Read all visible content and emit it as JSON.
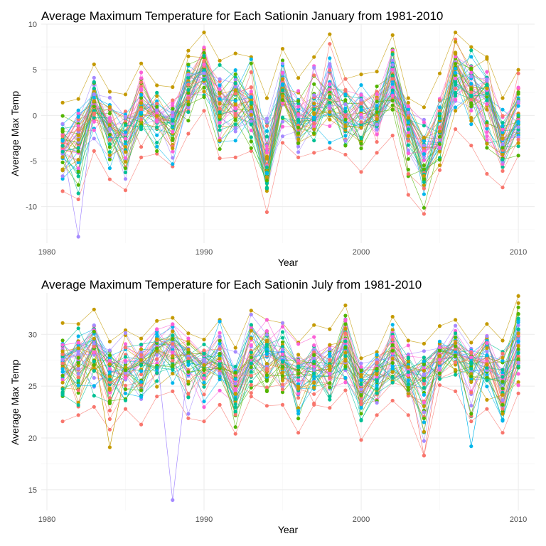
{
  "palette": [
    "#F8766D",
    "#C49A00",
    "#53B400",
    "#00C094",
    "#00B6EB",
    "#A58AFF",
    "#FB61D7"
  ],
  "chart_data": [
    {
      "type": "line",
      "title": "Average Maximum Temperature for Each Sationin January from 1981-2010",
      "xlabel": "Year",
      "ylabel": "Average Max Temp",
      "xlim": [
        1980,
        2010
      ],
      "ylim": [
        -14,
        10
      ],
      "xticks": [
        1980,
        1990,
        2000,
        2010
      ],
      "xtick_labels": [
        "1980",
        "1990",
        "2000",
        "2010"
      ],
      "yticks": [
        -10,
        -5,
        0,
        5,
        10
      ],
      "ytick_labels": [
        "-10",
        "-5",
        "0",
        "5",
        "10"
      ],
      "grid": true,
      "legend": "none",
      "years": [
        1981,
        1982,
        1983,
        1984,
        1985,
        1986,
        1987,
        1988,
        1989,
        1990,
        1991,
        1992,
        1993,
        1994,
        1995,
        1996,
        1997,
        1998,
        1999,
        2000,
        2001,
        2002,
        2003,
        2004,
        2005,
        2006,
        2007,
        2008,
        2009,
        2010
      ],
      "yearly_mean": [
        -3.3,
        -3.6,
        1.5,
        -2.0,
        -3.0,
        0.4,
        -0.3,
        -0.8,
        3.0,
        5.2,
        0.6,
        0.8,
        0.6,
        -5.6,
        2.5,
        -1.3,
        -0.2,
        1.7,
        -0.5,
        -0.8,
        -0.2,
        3.7,
        -0.7,
        -5.1,
        -2.8,
        4.6,
        3.1,
        1.6,
        -3.5,
        -0.7
      ],
      "yearly_min": [
        -8.3,
        -9.2,
        -3.9,
        -7.0,
        -8.2,
        -4.6,
        -4.2,
        -5.6,
        -2.0,
        0.5,
        -4.7,
        -4.6,
        -3.9,
        -10.6,
        -3.0,
        -4.6,
        -4.1,
        -3.6,
        -4.3,
        -6.2,
        -4.1,
        -2.2,
        -8.7,
        -10.8,
        -6.0,
        -1.5,
        -3.3,
        -6.4,
        -7.9,
        -4.4
      ],
      "yearly_max": [
        1.4,
        1.8,
        5.6,
        2.6,
        2.3,
        5.7,
        3.3,
        3.1,
        7.1,
        9.1,
        6.0,
        6.8,
        6.4,
        1.9,
        7.3,
        4.1,
        6.4,
        8.9,
        4.0,
        4.5,
        4.8,
        8.8,
        1.9,
        0.9,
        4.6,
        9.1,
        7.5,
        6.4,
        1.9,
        5.0
      ],
      "outliers": [
        {
          "x": 1982,
          "y": -13.3
        }
      ]
    },
    {
      "type": "line",
      "title": "Average Maximum Temperature for Each Sationin July from 1981-2010",
      "xlabel": "Year",
      "ylabel": "Average Max Temp",
      "xlim": [
        1980,
        2010
      ],
      "ylim": [
        13,
        34
      ],
      "xticks": [
        1980,
        1990,
        2000,
        2010
      ],
      "xtick_labels": [
        "1980",
        "1990",
        "2000",
        "2010"
      ],
      "yticks": [
        15,
        20,
        25,
        30
      ],
      "ytick_labels": [
        "15",
        "20",
        "25",
        "30"
      ],
      "grid": true,
      "legend": "none",
      "years": [
        1981,
        1982,
        1983,
        1984,
        1985,
        1986,
        1987,
        1988,
        1989,
        1990,
        1991,
        1992,
        1993,
        1994,
        1995,
        1996,
        1997,
        1998,
        1999,
        2000,
        2001,
        2002,
        2003,
        2004,
        2005,
        2006,
        2007,
        2008,
        2009,
        2010
      ],
      "yearly_mean": [
        27.3,
        27.5,
        28.5,
        26.6,
        26.4,
        27.1,
        28.1,
        28.6,
        27.2,
        26.8,
        27.4,
        24.7,
        28.2,
        27.9,
        27.6,
        26.4,
        27.0,
        26.6,
        29.1,
        25.3,
        26.2,
        27.8,
        26.3,
        25.9,
        27.8,
        28.4,
        27.3,
        27.7,
        25.1,
        28.9
      ],
      "yearly_min": [
        21.6,
        22.2,
        23.0,
        20.8,
        22.8,
        21.3,
        24.0,
        24.5,
        21.9,
        21.6,
        23.2,
        20.4,
        24.0,
        23.1,
        23.2,
        20.5,
        23.2,
        22.9,
        24.6,
        19.8,
        22.2,
        23.6,
        22.2,
        18.3,
        25.1,
        24.5,
        21.6,
        22.8,
        20.5,
        24.3
      ],
      "yearly_max": [
        31.1,
        31.0,
        32.4,
        29.3,
        30.4,
        29.6,
        31.3,
        31.6,
        30.1,
        29.5,
        31.4,
        28.7,
        32.3,
        31.4,
        31.1,
        29.2,
        30.9,
        30.5,
        32.8,
        27.7,
        28.3,
        31.7,
        29.4,
        29.1,
        30.8,
        31.4,
        29.2,
        31.0,
        29.4,
        33.7
      ],
      "outliers": [
        {
          "x": 1988,
          "y": 14.0
        },
        {
          "x": 1984,
          "y": 19.1
        },
        {
          "x": 2007,
          "y": 19.2
        },
        {
          "x": 2004,
          "y": 18.3
        }
      ]
    }
  ]
}
